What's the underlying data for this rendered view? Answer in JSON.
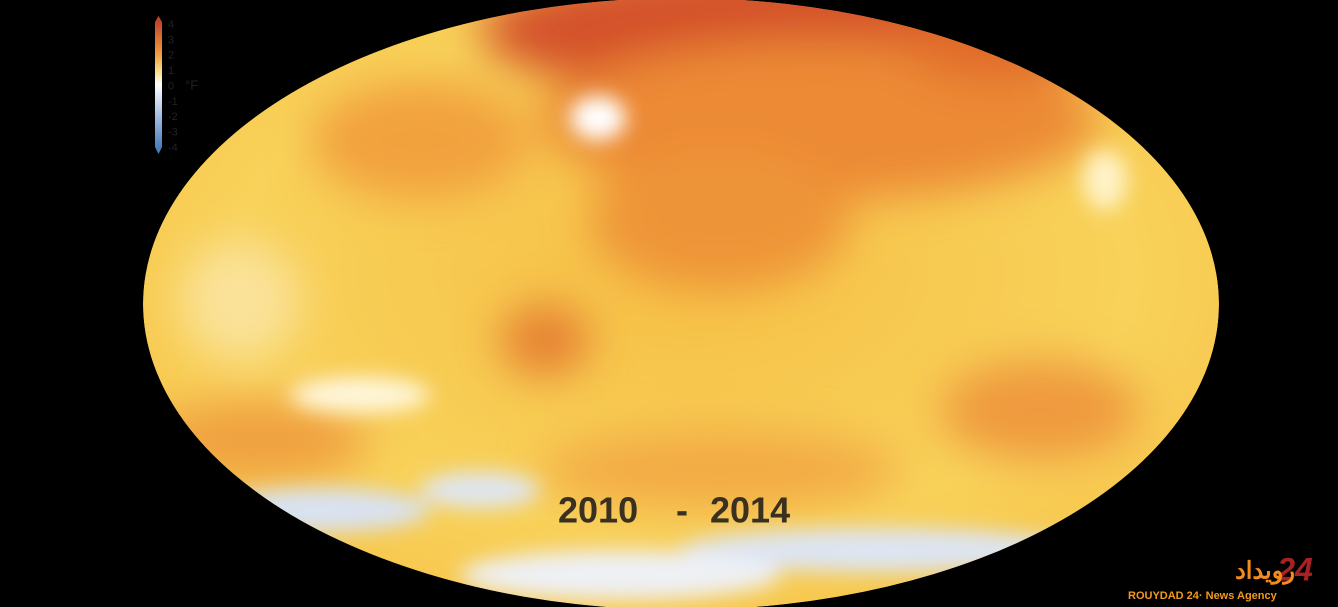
{
  "legend": {
    "ticks": [
      4,
      3,
      2,
      1,
      0,
      -1,
      -2,
      -3,
      -4
    ],
    "unit": "°F"
  },
  "period": {
    "start": "2010",
    "separator": "-",
    "end": "2014"
  },
  "watermark": {
    "logo_text": "رویداد",
    "logo_number": "24",
    "caption": "ROUYDAD 24· News Agency"
  }
}
